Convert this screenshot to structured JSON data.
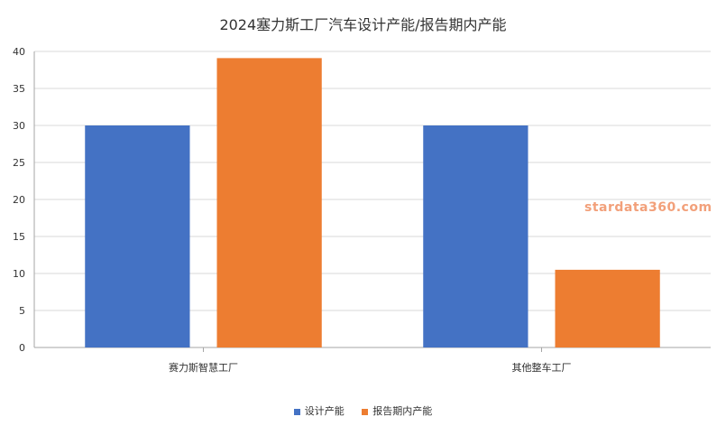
{
  "chart_data": {
    "type": "bar",
    "title": "2024塞力斯工厂汽车设计产能/报告期内产能",
    "categories": [
      "赛力斯智慧工厂",
      "其他整车工厂"
    ],
    "series": [
      {
        "name": "设计产能",
        "values": [
          30,
          30
        ],
        "color": "#4472c4"
      },
      {
        "name": "报告期内产能",
        "values": [
          39.1,
          10.5
        ],
        "color": "#ed7d31"
      }
    ],
    "ylim": [
      0,
      40
    ],
    "yticks": [
      0,
      5,
      10,
      15,
      20,
      25,
      30,
      35,
      40
    ],
    "grid": true,
    "legend_position": "bottom"
  },
  "watermark": "stardata360.com"
}
